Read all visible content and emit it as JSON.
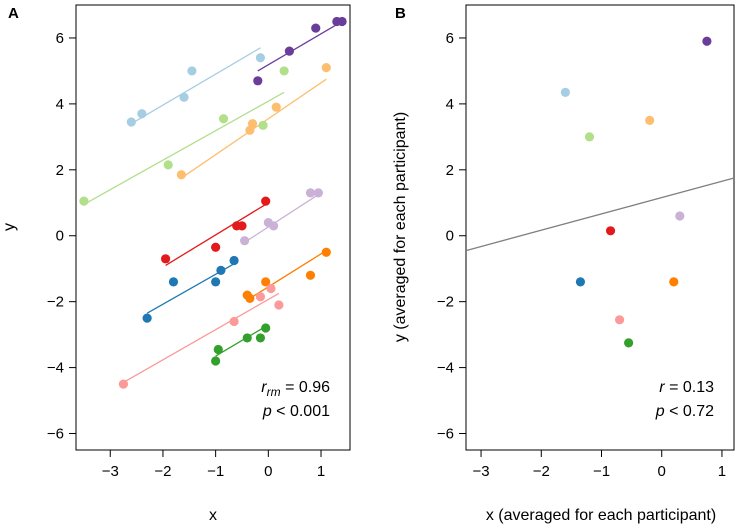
{
  "chart_data": [
    {
      "panel_label": "A",
      "type": "scatter",
      "xlabel": "x",
      "ylabel": "y",
      "xlim": [
        -3.65,
        1.55
      ],
      "ylim": [
        -6.5,
        7.0
      ],
      "xticks": [
        -3,
        -2,
        -1,
        0,
        1
      ],
      "yticks": [
        -6,
        -4,
        -2,
        0,
        2,
        4,
        6
      ],
      "annotation": {
        "stat_symbol": "r",
        "stat_sub": "rm",
        "stat_value": "= 0.96",
        "p_symbol": "p",
        "p_value": "< 0.001"
      },
      "series": [
        {
          "name": "purple",
          "color": "#6A3D9A",
          "points": [
            [
              -0.2,
              4.7
            ],
            [
              0.4,
              5.6
            ],
            [
              0.9,
              6.3
            ],
            [
              1.3,
              6.5
            ],
            [
              1.4,
              6.5
            ]
          ],
          "fit": [
            [
              -0.2,
              5.0
            ],
            [
              1.4,
              6.5
            ]
          ]
        },
        {
          "name": "light blue",
          "color": "#A6CEE3",
          "points": [
            [
              -2.6,
              3.45
            ],
            [
              -2.4,
              3.7
            ],
            [
              -1.6,
              4.2
            ],
            [
              -1.45,
              5.0
            ],
            [
              -0.15,
              5.4
            ]
          ],
          "fit": [
            [
              -2.6,
              3.4
            ],
            [
              -0.15,
              5.7
            ]
          ]
        },
        {
          "name": "light green",
          "color": "#B2DF8A",
          "points": [
            [
              -3.5,
              1.05
            ],
            [
              -1.9,
              2.15
            ],
            [
              -0.85,
              3.55
            ],
            [
              -0.1,
              3.35
            ],
            [
              0.3,
              5.0
            ]
          ],
          "fit": [
            [
              -3.5,
              0.95
            ],
            [
              0.3,
              4.35
            ]
          ]
        },
        {
          "name": "light orange",
          "color": "#FDBF6F",
          "points": [
            [
              -1.65,
              1.85
            ],
            [
              -0.35,
              3.2
            ],
            [
              -0.3,
              3.4
            ],
            [
              0.15,
              3.9
            ],
            [
              1.1,
              5.1
            ]
          ],
          "fit": [
            [
              -1.65,
              1.75
            ],
            [
              1.1,
              4.75
            ]
          ]
        },
        {
          "name": "lavender",
          "color": "#CAB2D6",
          "points": [
            [
              -0.45,
              -0.15
            ],
            [
              0.0,
              0.4
            ],
            [
              0.1,
              0.3
            ],
            [
              0.8,
              1.3
            ],
            [
              0.95,
              1.3
            ]
          ],
          "fit": [
            [
              -0.45,
              -0.2
            ],
            [
              0.95,
              1.25
            ]
          ]
        },
        {
          "name": "red",
          "color": "#E31A1C",
          "points": [
            [
              -1.95,
              -0.7
            ],
            [
              -1.0,
              -0.35
            ],
            [
              -0.6,
              0.3
            ],
            [
              -0.5,
              0.3
            ],
            [
              -0.05,
              1.05
            ]
          ],
          "fit": [
            [
              -1.95,
              -0.9
            ],
            [
              -0.05,
              0.95
            ]
          ]
        },
        {
          "name": "blue",
          "color": "#1F78B4",
          "points": [
            [
              -2.3,
              -2.5
            ],
            [
              -1.8,
              -1.4
            ],
            [
              -1.0,
              -1.4
            ],
            [
              -0.9,
              -1.05
            ],
            [
              -0.65,
              -0.75
            ]
          ],
          "fit": [
            [
              -2.3,
              -2.35
            ],
            [
              -0.65,
              -0.85
            ]
          ]
        },
        {
          "name": "orange",
          "color": "#FF7F00",
          "points": [
            [
              -0.4,
              -1.8
            ],
            [
              -0.35,
              -1.9
            ],
            [
              -0.05,
              -1.4
            ],
            [
              0.8,
              -1.2
            ],
            [
              1.1,
              -0.5
            ]
          ],
          "fit": [
            [
              -0.4,
              -1.95
            ],
            [
              1.1,
              -0.45
            ]
          ]
        },
        {
          "name": "pink",
          "color": "#FB9A99",
          "points": [
            [
              -2.75,
              -4.5
            ],
            [
              -0.65,
              -2.6
            ],
            [
              -0.15,
              -1.85
            ],
            [
              0.05,
              -1.6
            ],
            [
              0.2,
              -2.1
            ]
          ],
          "fit": [
            [
              -2.75,
              -4.45
            ],
            [
              0.2,
              -1.75
            ]
          ]
        },
        {
          "name": "green",
          "color": "#33A02C",
          "points": [
            [
              -1.0,
              -3.8
            ],
            [
              -0.95,
              -3.45
            ],
            [
              -0.4,
              -3.1
            ],
            [
              -0.15,
              -3.1
            ],
            [
              -0.05,
              -2.8
            ]
          ],
          "fit": [
            [
              -1.0,
              -3.65
            ],
            [
              -0.05,
              -2.75
            ]
          ]
        }
      ]
    },
    {
      "panel_label": "B",
      "type": "scatter",
      "xlabel": "x (averaged for each participant)",
      "ylabel": "y (averaged for each participant)",
      "xlim": [
        -3.25,
        1.2
      ],
      "ylim": [
        -6.5,
        7.0
      ],
      "xticks": [
        -3,
        -2,
        -1,
        0,
        1
      ],
      "yticks": [
        -6,
        -4,
        -2,
        0,
        2,
        4,
        6
      ],
      "annotation": {
        "stat_symbol": "r",
        "stat_value": "= 0.13",
        "p_symbol": "p",
        "p_value": "< 0.72"
      },
      "regression_line": {
        "color": "#808080",
        "points": [
          [
            -3.25,
            -0.45
          ],
          [
            1.2,
            1.75
          ]
        ]
      },
      "points": [
        {
          "name": "purple",
          "color": "#6A3D9A",
          "x": 0.75,
          "y": 5.9
        },
        {
          "name": "light blue",
          "color": "#A6CEE3",
          "x": -1.6,
          "y": 4.35
        },
        {
          "name": "light green",
          "color": "#B2DF8A",
          "x": -1.2,
          "y": 3.0
        },
        {
          "name": "light orange",
          "color": "#FDBF6F",
          "x": -0.2,
          "y": 3.5
        },
        {
          "name": "lavender",
          "color": "#CAB2D6",
          "x": 0.3,
          "y": 0.6
        },
        {
          "name": "red",
          "color": "#E31A1C",
          "x": -0.85,
          "y": 0.15
        },
        {
          "name": "blue",
          "color": "#1F78B4",
          "x": -1.35,
          "y": -1.4
        },
        {
          "name": "orange",
          "color": "#FF7F00",
          "x": 0.2,
          "y": -1.4
        },
        {
          "name": "pink",
          "color": "#FB9A99",
          "x": -0.7,
          "y": -2.55
        },
        {
          "name": "green",
          "color": "#33A02C",
          "x": -0.55,
          "y": -3.25
        }
      ]
    }
  ]
}
